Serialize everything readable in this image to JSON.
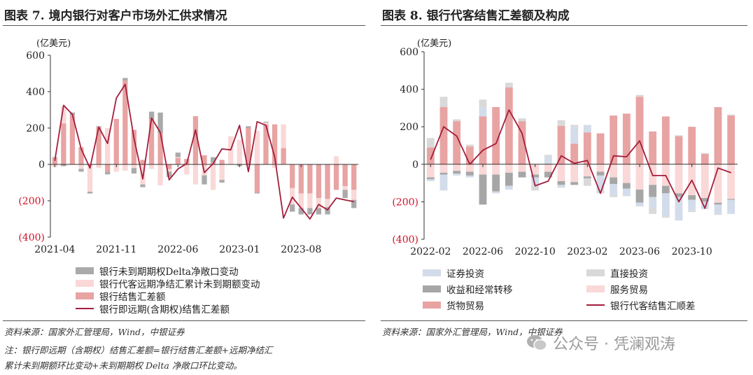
{
  "left_panel": {
    "title": "图表 7. 境内银行对客户市场外汇供求情况",
    "unit_label": "(亿美元)",
    "source": "资料来源：国家外汇管理局，Wind，中银证券",
    "note_line1": "注：银行即远期（含期权）结售汇差额=银行结售汇差额+远期净结汇",
    "note_line2": "累计未到期额环比变动+未到期期权 Delta 净敞口环比变动。",
    "legend": [
      {
        "label": "银行未到期期权Delta净敞口变动",
        "color": "#aaaaaa"
      },
      {
        "label": "银行代客远期净结汇累计未到期额变动",
        "color": "#fad8d8"
      },
      {
        "label": "银行结售汇差额",
        "color": "#e8a3a3"
      },
      {
        "label": "银行即远期(含期权)结售汇差额",
        "color": "#a31e3c"
      }
    ]
  },
  "right_panel": {
    "title": "图表 8. 银行代客结售汇差额及构成",
    "unit_label": "(亿美元)",
    "source": "资料来源：国家外汇管理局，Wind，中银证券",
    "legend": [
      {
        "label": "证券投资",
        "color": "#d3dcea"
      },
      {
        "label": "直接投资",
        "color": "#d9d9d9"
      },
      {
        "label": "收益和经常转移",
        "color": "#a6a6a6"
      },
      {
        "label": "服务贸易",
        "color": "#fad8d8"
      },
      {
        "label": "货物贸易",
        "color": "#e8a3a3"
      },
      {
        "label": "银行代客结售汇顺差",
        "color": "#a31e3c"
      }
    ]
  },
  "watermark": "公众号 · 凭澜观涛",
  "chart_data": [
    {
      "type": "bar",
      "title": "图表 7. 境内银行对客户市场外汇供求情况",
      "ylabel": "(亿美元)",
      "ylim": [
        -400,
        600
      ],
      "yticks": [
        600,
        400,
        200,
        0,
        -200,
        -400
      ],
      "ytick_labels": [
        "600",
        "400",
        "200",
        "0",
        "(200)",
        "(400)"
      ],
      "x_tick_labels": [
        "2021-04",
        "2021-11",
        "2022-06",
        "2023-01",
        "2023-08"
      ],
      "x_tick_index": [
        0,
        7,
        14,
        21,
        28
      ],
      "stacked": true,
      "legend_position": "bottom",
      "series": [
        {
          "name": "银行结售汇差额",
          "kind": "bar",
          "values": [
            35,
            225,
            270,
            95,
            -5,
            205,
            -40,
            250,
            460,
            190,
            25,
            250,
            170,
            -25,
            35,
            30,
            265,
            50,
            10,
            25,
            0,
            0,
            200,
            -155,
            220,
            220,
            90,
            -130,
            -160,
            -160,
            -185,
            -190,
            -140,
            -120,
            -140
          ]
        },
        {
          "name": "银行代客远期净结汇累计未到期额变动",
          "kind": "bar",
          "values": [
            -15,
            95,
            0,
            -25,
            -145,
            -20,
            200,
            -40,
            -35,
            -20,
            -110,
            -25,
            -115,
            -15,
            5,
            -55,
            -110,
            -60,
            -140,
            -85,
            155,
            135,
            -10,
            185,
            10,
            -20,
            130,
            -90,
            -80,
            -80,
            -55,
            -45,
            45,
            -20,
            -55
          ]
        },
        {
          "name": "银行未到期期权Delta净敞口变动",
          "kind": "bar",
          "values": [
            5,
            -10,
            15,
            -15,
            -10,
            5,
            -15,
            0,
            15,
            -30,
            -15,
            40,
            115,
            -30,
            25,
            0,
            0,
            -50,
            30,
            -15,
            0,
            -10,
            10,
            -5,
            5,
            0,
            0,
            -40,
            -35,
            -35,
            -35,
            -40,
            0,
            -45,
            -45
          ]
        },
        {
          "name": "银行即远期(含期权)结售汇差额",
          "kind": "line",
          "values": [
            20,
            325,
            275,
            85,
            -20,
            205,
            115,
            365,
            440,
            145,
            -80,
            255,
            175,
            -85,
            -25,
            5,
            190,
            -45,
            5,
            85,
            80,
            215,
            -40,
            235,
            215,
            40,
            -295,
            -180,
            -240,
            -300,
            -220,
            -250,
            -185,
            -195,
            -205
          ]
        }
      ]
    },
    {
      "type": "bar",
      "title": "图表 8. 银行代客结售汇差额及构成",
      "ylabel": "(亿美元)",
      "ylim": [
        -400,
        600
      ],
      "yticks": [
        600,
        400,
        200,
        0,
        -200,
        -400
      ],
      "ytick_labels": [
        "600",
        "400",
        "200",
        "0",
        "(200)",
        "(400)"
      ],
      "x_tick_labels": [
        "2022-02",
        "2022-06",
        "2022-10",
        "2023-02",
        "2023-06",
        "2023-10"
      ],
      "x_tick_index": [
        0,
        4,
        8,
        12,
        16,
        20
      ],
      "stacked": true,
      "legend_position": "bottom",
      "series": [
        {
          "name": "货物贸易",
          "kind": "bar",
          "values": [
            90,
            305,
            230,
            95,
            255,
            305,
            410,
            230,
            0,
            0,
            205,
            110,
            170,
            165,
            260,
            270,
            360,
            175,
            255,
            150,
            200,
            55,
            305,
            260
          ]
        },
        {
          "name": "服务贸易",
          "kind": "bar",
          "values": [
            -70,
            -45,
            -35,
            -40,
            -55,
            -55,
            -45,
            -40,
            -55,
            -40,
            -90,
            -95,
            -65,
            -40,
            -70,
            -100,
            -135,
            -110,
            -115,
            -155,
            -165,
            -180,
            -205,
            -185
          ]
        },
        {
          "name": "收益和经常转移",
          "kind": "bar",
          "values": [
            -10,
            -10,
            -15,
            -20,
            -160,
            -90,
            -70,
            -30,
            -15,
            -30,
            -20,
            -15,
            -10,
            -20,
            -35,
            -30,
            -70,
            -65,
            -40,
            -20,
            -25,
            -20,
            -10,
            -5
          ]
        },
        {
          "name": "证券投资",
          "kind": "bar",
          "values": [
            -10,
            -85,
            -10,
            -10,
            50,
            -10,
            -20,
            0,
            -50,
            40,
            -15,
            90,
            40,
            -75,
            -60,
            -40,
            -20,
            -60,
            -125,
            -125,
            -60,
            -40,
            -50,
            -75
          ]
        },
        {
          "name": "直接投资",
          "kind": "bar",
          "values": [
            50,
            55,
            10,
            10,
            40,
            0,
            25,
            15,
            -20,
            10,
            30,
            10,
            -40,
            -20,
            -10,
            0,
            10,
            -30,
            -5,
            5,
            -5,
            5,
            -5,
            5
          ]
        },
        {
          "name": "银行代客结售汇顺差",
          "kind": "line",
          "values": [
            25,
            200,
            150,
            0,
            75,
            110,
            290,
            165,
            -115,
            -90,
            45,
            5,
            20,
            -155,
            45,
            40,
            125,
            -60,
            -60,
            -200,
            -85,
            -235,
            -20,
            -45
          ]
        }
      ]
    }
  ]
}
